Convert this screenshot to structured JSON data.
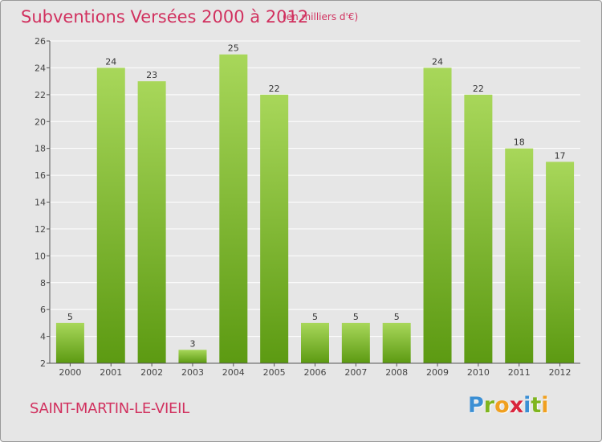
{
  "header": {
    "title": "Subventions Versées 2000 à 2012",
    "subtitle": "(en milliers d'€)"
  },
  "footer": {
    "commune": "SAINT-MARTIN-LE-VIEIL",
    "logo": {
      "letters": [
        "P",
        "r",
        "o",
        "x",
        "i",
        "t",
        "i"
      ],
      "colors": [
        "#3b8fd4",
        "#7fb51f",
        "#f0a020",
        "#d9253d",
        "#3b8fd4",
        "#7fb51f",
        "#f0a020"
      ]
    }
  },
  "colors": {
    "title": "#d1315f",
    "bar_light": "#a8d75a",
    "bar_dark": "#5c9a12",
    "background": "#e6e6e6"
  },
  "chart_data": {
    "type": "bar",
    "categories": [
      "2000",
      "2001",
      "2002",
      "2003",
      "2004",
      "2005",
      "2006",
      "2007",
      "2008",
      "2009",
      "2010",
      "2011",
      "2012"
    ],
    "values": [
      5,
      24,
      23,
      3,
      25,
      22,
      5,
      5,
      5,
      24,
      22,
      18,
      17
    ],
    "data_labels": [
      "5",
      "24",
      "23",
      "3",
      "25",
      "22",
      "5",
      "5",
      "5",
      "24",
      "22",
      "18",
      "17"
    ],
    "ylim": [
      2,
      26
    ],
    "yticks": [
      2,
      4,
      6,
      8,
      10,
      12,
      14,
      16,
      18,
      20,
      22,
      24,
      26
    ],
    "ytick_labels": [
      "2",
      "4",
      "6",
      "8",
      "10",
      "12",
      "14",
      "16",
      "18",
      "20",
      "22",
      "24",
      "26"
    ],
    "grid": "horizontal",
    "legend": "none"
  }
}
